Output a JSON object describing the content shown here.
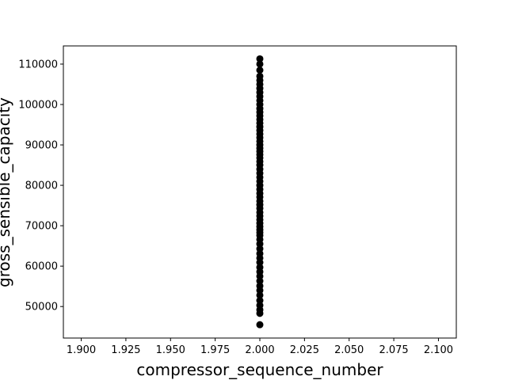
{
  "chart_data": {
    "type": "scatter",
    "title": "",
    "xlabel": "compressor_sequence_number",
    "ylabel": "gross_sensible_capacity",
    "xlim": [
      1.89,
      2.11
    ],
    "ylim": [
      42200,
      114500
    ],
    "xticks": [
      "1.900",
      "1.925",
      "1.950",
      "1.975",
      "2.000",
      "2.025",
      "2.050",
      "2.075",
      "2.100"
    ],
    "yticks": [
      "50000",
      "60000",
      "70000",
      "80000",
      "90000",
      "100000",
      "110000"
    ],
    "grid": false,
    "point_color": "#000000",
    "series": [
      {
        "x": [
          2,
          2,
          2,
          2,
          2,
          2,
          2,
          2,
          2,
          2,
          2,
          2,
          2,
          2,
          2,
          2,
          2,
          2,
          2,
          2,
          2,
          2,
          2,
          2,
          2,
          2,
          2,
          2,
          2,
          2,
          2,
          2,
          2,
          2,
          2,
          2,
          2,
          2,
          2,
          2,
          2,
          2,
          2,
          2,
          2,
          2,
          2,
          2,
          2,
          2,
          2,
          2,
          2,
          2,
          2,
          2,
          2,
          2,
          2,
          2,
          2,
          2,
          2,
          2,
          2
        ],
        "y": [
          45500,
          48300,
          49200,
          50300,
          51500,
          52800,
          54000,
          55100,
          56300,
          57500,
          58600,
          59700,
          60900,
          62000,
          63100,
          64300,
          65500,
          66600,
          67600,
          68300,
          69000,
          69800,
          70600,
          71500,
          72400,
          73300,
          74300,
          75200,
          76100,
          77100,
          78000,
          79000,
          80000,
          81000,
          82000,
          83000,
          84000,
          85000,
          85900,
          86800,
          87600,
          88400,
          89200,
          90000,
          90900,
          91800,
          92700,
          93600,
          94500,
          95400,
          96300,
          97200,
          98100,
          99000,
          100000,
          101000,
          102000,
          103000,
          104000,
          105000,
          106000,
          107000,
          108500,
          110000,
          111300
        ]
      }
    ]
  }
}
